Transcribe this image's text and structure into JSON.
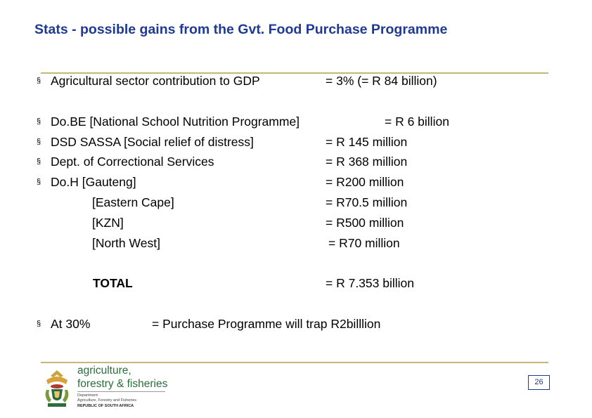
{
  "slide": {
    "title": "Stats  - possible gains from the Gvt. Food Purchase Programme",
    "gdp": {
      "label": "Agricultural sector contribution to GDP",
      "value": "= 3% (= R 84 billion)"
    },
    "items": [
      {
        "label": "Do.BE [National School Nutrition Programme]",
        "value": "= R 6 billion"
      },
      {
        "label": "DSD  SASSA  [Social relief of distress]",
        "value": "= R 145 million"
      },
      {
        "label": "Dept. of Correctional Services",
        "value": "= R 368 million"
      },
      {
        "label": "Do.H    [Gauteng]",
        "value": "=  R200 million"
      }
    ],
    "sub_items": [
      {
        "label": "[Eastern Cape]",
        "value": "=  R70.5 million"
      },
      {
        "label": "[KZN]",
        "value": "=  R500 million"
      },
      {
        "label": "[North West]",
        "value": "=  R70 million"
      }
    ],
    "total": {
      "label": "TOTAL",
      "value": "=  R 7.353 billion"
    },
    "at30": {
      "label": "At 30%",
      "value": "= Purchase Programme will trap R2billlion"
    },
    "page_number": "26"
  },
  "logo": {
    "line1": "agriculture,",
    "line2": "forestry & fisheries",
    "small1": "Department:",
    "small2": "Agriculture, Forestry and Fisheries",
    "small3": "REPUBLIC OF SOUTH AFRICA"
  },
  "colors": {
    "title": "#1f3a93",
    "rule": "#c8b57a",
    "logo_green": "#2b6d3d"
  }
}
